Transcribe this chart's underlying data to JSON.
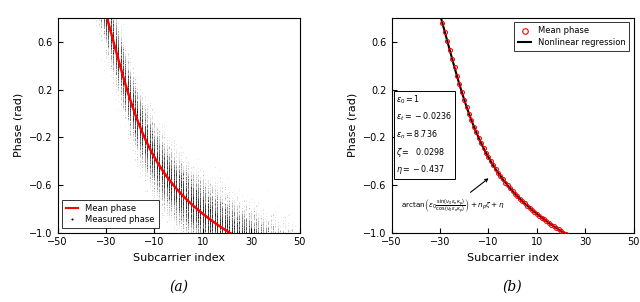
{
  "xlim": [
    -50,
    50
  ],
  "ylim": [
    -1,
    0.8
  ],
  "yticks": [
    -1,
    -0.6,
    -0.2,
    0.2,
    0.6
  ],
  "xticks": [
    -50,
    -30,
    -10,
    10,
    30,
    50
  ],
  "xlabel": "Subcarrier index",
  "ylabel": "Phase (rad)",
  "subplot_a_label": "(a)",
  "subplot_b_label": "(b)",
  "legend_a": [
    "Mean phase",
    "Measured phase"
  ],
  "legend_b": [
    "Mean phase",
    "Nonlinear regression"
  ],
  "background_color": "#ffffff",
  "mean_phase_color": "#ff0000",
  "scatter_color": "#000000",
  "regression_color": "#000000",
  "mean_phase_b_color": "#ff0000",
  "noise_std": 0.12,
  "n_samples": 500,
  "curve_a": -0.012,
  "curve_b": 0.38,
  "curve_c": 27.0,
  "curve_d": -0.007
}
